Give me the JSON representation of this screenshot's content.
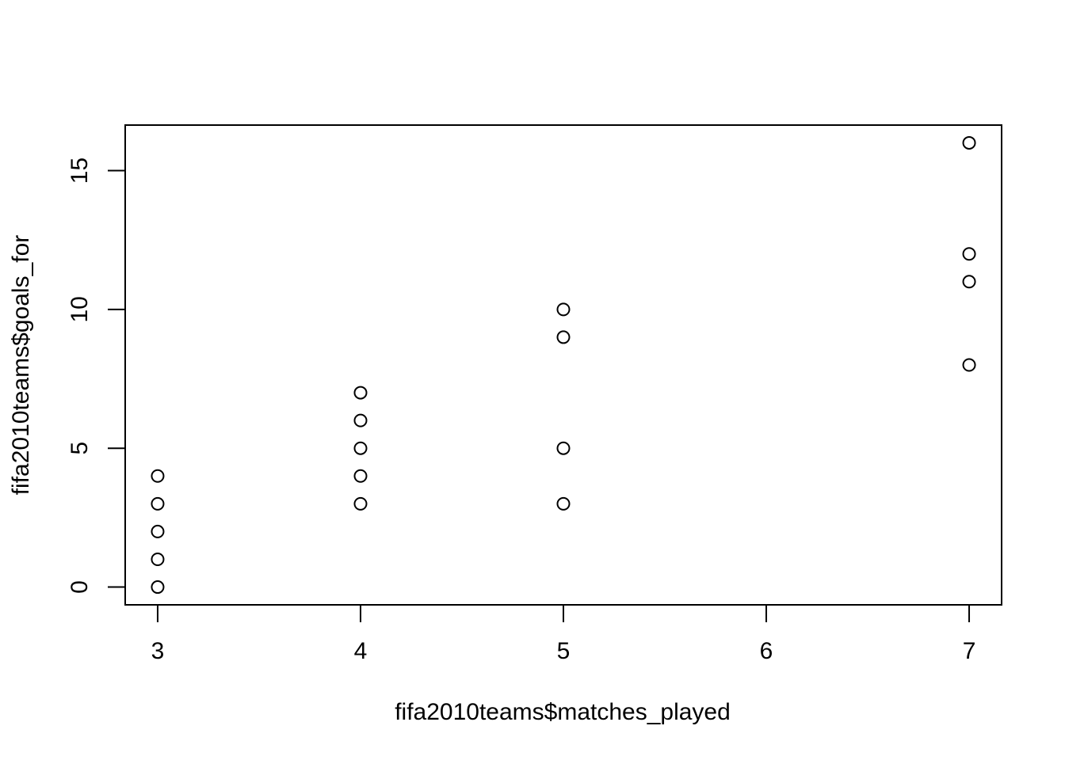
{
  "chart_data": {
    "type": "scatter",
    "title": "",
    "xlabel": "fifa2010teams$matches_played",
    "ylabel": "fifa2010teams$goals_for",
    "xlim": [
      2.84,
      7.16
    ],
    "ylim": [
      -0.64,
      16.64
    ],
    "xticks": [
      3,
      4,
      5,
      6,
      7
    ],
    "yticks": [
      0,
      5,
      10,
      15
    ],
    "grid": false,
    "legend": "none",
    "marker": "open-circle",
    "marker_color": "#000000",
    "points": [
      {
        "x": 3,
        "y": 4
      },
      {
        "x": 3,
        "y": 3
      },
      {
        "x": 3,
        "y": 2
      },
      {
        "x": 3,
        "y": 1
      },
      {
        "x": 3,
        "y": 0
      },
      {
        "x": 4,
        "y": 7
      },
      {
        "x": 4,
        "y": 6
      },
      {
        "x": 4,
        "y": 5
      },
      {
        "x": 4,
        "y": 4
      },
      {
        "x": 4,
        "y": 3
      },
      {
        "x": 5,
        "y": 10
      },
      {
        "x": 5,
        "y": 9
      },
      {
        "x": 5,
        "y": 5
      },
      {
        "x": 5,
        "y": 3
      },
      {
        "x": 7,
        "y": 16
      },
      {
        "x": 7,
        "y": 12
      },
      {
        "x": 7,
        "y": 11
      },
      {
        "x": 7,
        "y": 8
      }
    ]
  }
}
